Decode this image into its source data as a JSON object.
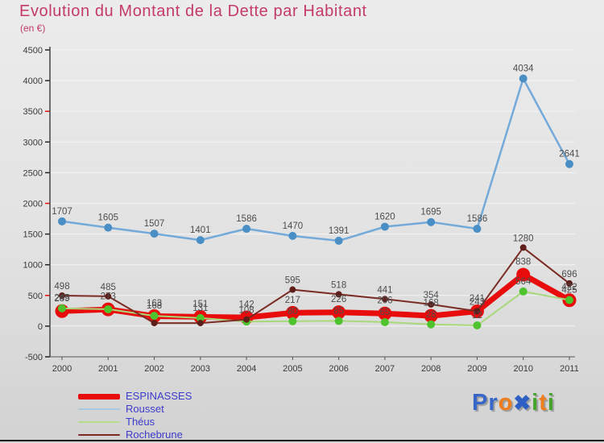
{
  "header": {
    "title": "Evolution du Montant de la Dette par Habitant",
    "subtitle": "(en €)"
  },
  "chart_data": {
    "type": "line",
    "title": "Evolution du Montant de la Dette par Habitant",
    "subtitle": "(en €)",
    "x": [
      2000,
      2001,
      2002,
      2003,
      2004,
      2005,
      2006,
      2007,
      2008,
      2009,
      2010,
      2011
    ],
    "ylim": [
      -500,
      4500
    ],
    "ytick_step": 500,
    "grid": "horizontal",
    "legend_position": "bottom-left",
    "series": [
      {
        "name": "Rousset",
        "color": "#74aad9",
        "marker_color": "#4a8ec6",
        "line_width": 2.5,
        "marker_radius": 5,
        "values": [
          1707,
          1605,
          1507,
          1401,
          1586,
          1470,
          1391,
          1620,
          1695,
          1586,
          4034,
          2641
        ],
        "labels": [
          "1707",
          "1605",
          "1507",
          "1401",
          "1586",
          "1470",
          "1391",
          "1620",
          "1695",
          "1586",
          "4034",
          "2641"
        ]
      },
      {
        "name": "ESPINASSES",
        "color": "#e80c0c",
        "marker_color": "#e80c0c",
        "line_width": 7,
        "marker_radius": 8.5,
        "values": [
          245,
          273,
          163,
          151,
          142,
          217,
          226,
          206,
          168,
          241,
          838,
          422
        ],
        "labels": [
          "245",
          "273",
          "163",
          "151",
          "142",
          "217",
          "226",
          "206",
          "168",
          "241",
          "838",
          "422"
        ]
      },
      {
        "name": "Théus",
        "color": "#a9d87b",
        "marker_color": "#4ec32d",
        "line_width": 2,
        "marker_radius": 5,
        "values": [
          289,
          275,
          168,
          131,
          75,
          80,
          85,
          65,
          28,
          12,
          564,
          425
        ],
        "labels": [
          "289",
          null,
          "168",
          "131",
          null,
          "80",
          "85",
          "65",
          "28",
          "12",
          "564",
          "425"
        ]
      },
      {
        "name": "Rochebrune",
        "color": "#7a2b24",
        "marker_color": "#5e1f1a",
        "line_width": 2,
        "marker_radius": 4,
        "values": [
          498,
          485,
          50,
          50,
          108,
          595,
          518,
          441,
          354,
          243,
          1280,
          696
        ],
        "labels": [
          "498",
          "485",
          null,
          null,
          "108",
          "595",
          "518",
          "441",
          "354",
          "243",
          "1280",
          "696"
        ]
      }
    ]
  },
  "axis": {
    "y_labels": [
      "4500",
      "4000",
      "3500",
      "3000",
      "2500",
      "2000",
      "1500",
      "1000",
      "500",
      "0",
      "-500"
    ],
    "x_labels": [
      "2000",
      "2001",
      "2002",
      "2003",
      "2004",
      "2005",
      "2006",
      "2007",
      "2008",
      "2009",
      "2010",
      "2011"
    ]
  },
  "legend": {
    "items": [
      {
        "label": "ESPINASSES",
        "color": "#e80c0c",
        "thickness": 7
      },
      {
        "label": "Rousset",
        "color": "#a8c8e0",
        "thickness": 2
      },
      {
        "label": "Théus",
        "color": "#b4dd8c",
        "thickness": 2
      },
      {
        "label": "Rochebrune",
        "color": "#7a2b24",
        "thickness": 2
      }
    ]
  },
  "logo": {
    "letters": [
      {
        "ch": "P",
        "color": "#3566c8"
      },
      {
        "ch": "r",
        "color": "#3566c8"
      },
      {
        "ch": "o",
        "color": "#ef7d1c"
      },
      {
        "ch": "✖",
        "color": "#2d5fc4"
      },
      {
        "ch": "i",
        "color": "#43a32a"
      },
      {
        "ch": "t",
        "color": "#ef7d1c"
      },
      {
        "ch": "i",
        "color": "#43a32a"
      }
    ]
  },
  "colors": {
    "title": "#c43b67",
    "legend_text": "#3c3ccc",
    "data_label": "#4d4d4d",
    "axis_text": "#3a3a3a",
    "gridline": "#f4f4f4",
    "axis_line": "#555555",
    "tick_accent": "#e01010",
    "bottom_rule": "#1c1c1c"
  }
}
